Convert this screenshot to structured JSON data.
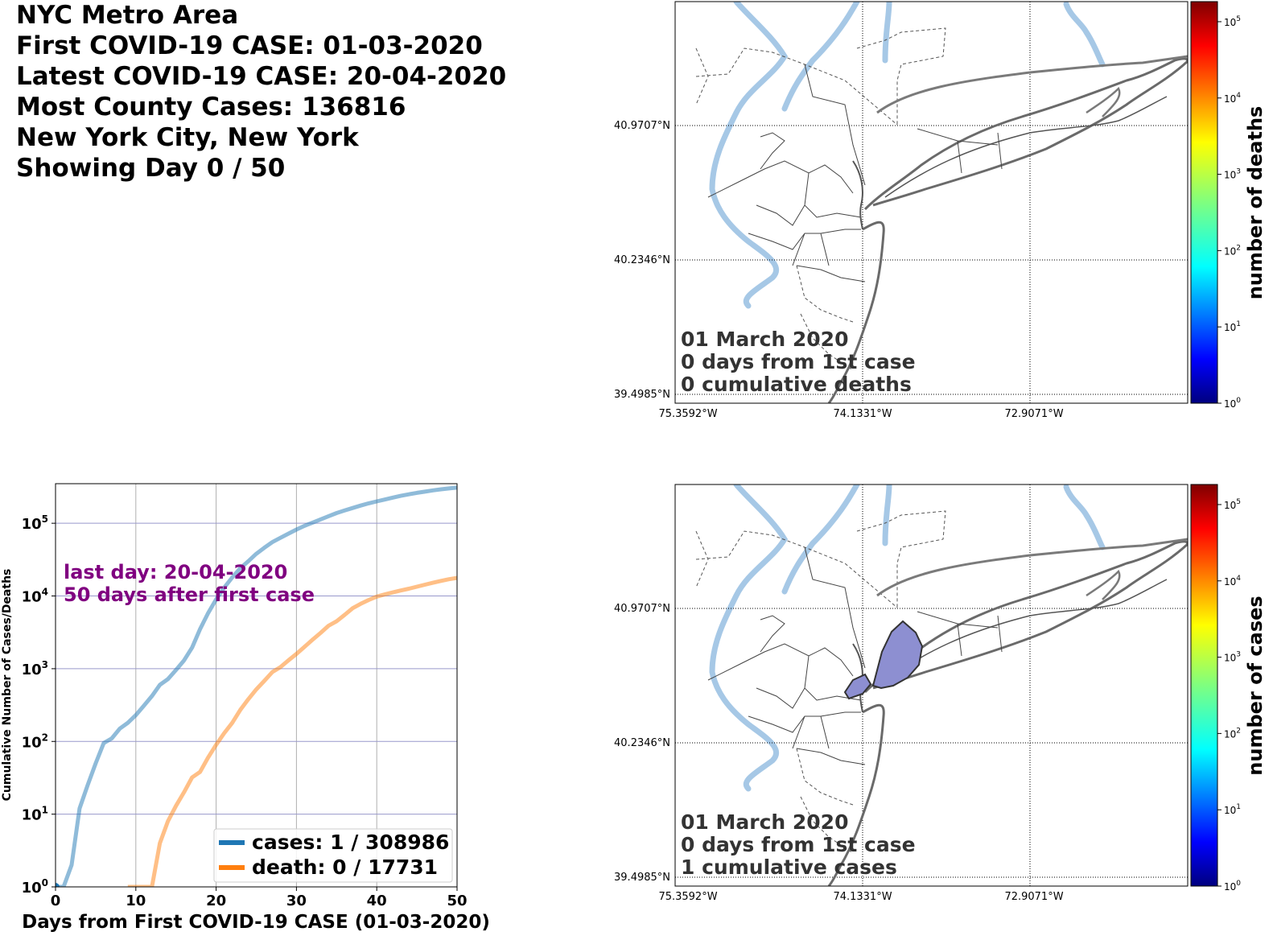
{
  "header": {
    "line1": "NYC Metro Area",
    "line2": "First COVID-19 CASE: 01-03-2020",
    "line3": "Latest COVID-19 CASE: 20-04-2020",
    "line4": "Most County Cases: 136816",
    "line5": "New York City, New York",
    "line6": "Showing Day 0 / 50"
  },
  "maps": {
    "lat_labels": [
      "40.9707°N",
      "40.2346°N",
      "39.4985°N"
    ],
    "lon_labels": [
      "75.3592°W",
      "74.1331°W",
      "72.9071°W"
    ],
    "deaths_map": {
      "colorbar_label": "number of deaths",
      "ann1": "01 March 2020",
      "ann2": "0 days from 1st case",
      "ann3": "0 cumulative deaths"
    },
    "cases_map": {
      "colorbar_label": "number of cases",
      "ann1": "01 March 2020",
      "ann2": "0 days from 1st case",
      "ann3": "1 cumulative cases"
    },
    "colorbar_ticks": [
      "10",
      "10",
      "10",
      "10",
      "10",
      "10"
    ],
    "colorbar_exponents": [
      "0",
      "1",
      "2",
      "3",
      "4",
      "5"
    ],
    "colors": {
      "river": "#a6c8e6",
      "county_fill": "#8d8fd1",
      "county_edge": "#333333"
    }
  },
  "chart_data": {
    "type": "line",
    "xlabel": "Days from First COVID-19 CASE (01-03-2020)",
    "ylabel": "Cumulative Number of Cases/Deaths",
    "xlim": [
      0,
      50
    ],
    "ylim": [
      1,
      350000
    ],
    "yscale": "log",
    "xticks": [
      "0",
      "10",
      "20",
      "30",
      "40",
      "50"
    ],
    "ytick_base": "10",
    "ytick_exponents": [
      "0",
      "1",
      "2",
      "3",
      "4",
      "5"
    ],
    "annotation_line1": "last day: 20-04-2020",
    "annotation_line2": "50 days after first case",
    "legend_position": "lower-right",
    "series": [
      {
        "key": "cases",
        "legend": "cases: 1 / 308986",
        "color": "#1f77b4",
        "x": [
          0,
          1,
          2,
          3,
          4,
          5,
          6,
          7,
          8,
          9,
          10,
          11,
          12,
          13,
          14,
          15,
          16,
          17,
          18,
          19,
          20,
          21,
          22,
          23,
          24,
          25,
          26,
          27,
          28,
          29,
          30,
          31,
          32,
          33,
          34,
          35,
          36,
          37,
          38,
          39,
          40,
          41,
          42,
          43,
          44,
          45,
          46,
          47,
          48,
          49,
          50
        ],
        "y": [
          1,
          1,
          2,
          12,
          25,
          50,
          95,
          110,
          150,
          180,
          230,
          310,
          420,
          600,
          720,
          960,
          1300,
          1950,
          3500,
          5800,
          9000,
          13000,
          18000,
          24000,
          30000,
          38000,
          46000,
          55000,
          63000,
          72000,
          82000,
          92000,
          102000,
          113000,
          125000,
          138000,
          150000,
          162000,
          175000,
          188000,
          200000,
          212000,
          225000,
          238000,
          250000,
          262000,
          272000,
          283000,
          293000,
          301000,
          308986
        ]
      },
      {
        "key": "death",
        "legend": "death: 0 / 17731",
        "color": "#ff7f0e",
        "x": [
          9,
          10,
          11,
          12,
          13,
          14,
          15,
          16,
          17,
          18,
          19,
          20,
          21,
          22,
          23,
          24,
          25,
          26,
          27,
          28,
          29,
          30,
          31,
          32,
          33,
          34,
          35,
          36,
          37,
          38,
          39,
          40,
          41,
          42,
          43,
          44,
          45,
          46,
          47,
          48,
          49,
          50
        ],
        "y": [
          1,
          1,
          1,
          1,
          4,
          8,
          13,
          20,
          32,
          38,
          60,
          90,
          130,
          180,
          270,
          380,
          520,
          680,
          900,
          1050,
          1300,
          1600,
          2000,
          2500,
          3100,
          3900,
          4500,
          5500,
          6800,
          7800,
          8800,
          9800,
          10500,
          11200,
          11900,
          12600,
          13400,
          14300,
          15200,
          16100,
          17000,
          17731
        ]
      }
    ]
  }
}
